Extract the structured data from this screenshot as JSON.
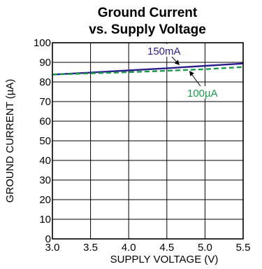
{
  "chart_data": {
    "type": "line",
    "title": "Ground Current",
    "subtitle": "vs. Supply Voltage",
    "xlabel": "SUPPLY VOLTAGE (V)",
    "ylabel": "GROUND CURRENT (µA)",
    "xlim": [
      3.0,
      5.5
    ],
    "ylim": [
      0,
      100
    ],
    "x_ticks": [
      "3.0",
      "3.5",
      "4.0",
      "4.5",
      "5.0",
      "5.5"
    ],
    "y_ticks": [
      "0",
      "10",
      "20",
      "30",
      "40",
      "50",
      "60",
      "70",
      "80",
      "90",
      "100"
    ],
    "grid": true,
    "series": [
      {
        "name": "150mA",
        "color": "#2b1f8c",
        "dash": "solid",
        "x": [
          3.0,
          3.5,
          4.0,
          4.5,
          5.0,
          5.5
        ],
        "y": [
          83.8,
          84.8,
          85.9,
          87.0,
          88.2,
          89.4
        ]
      },
      {
        "name": "100µA",
        "color": "#1a9a4a",
        "dash": "dashed",
        "x": [
          3.0,
          3.5,
          4.0,
          4.5,
          5.0,
          5.5
        ],
        "y": [
          83.8,
          84.4,
          85.0,
          85.7,
          86.5,
          87.6
        ]
      }
    ]
  }
}
